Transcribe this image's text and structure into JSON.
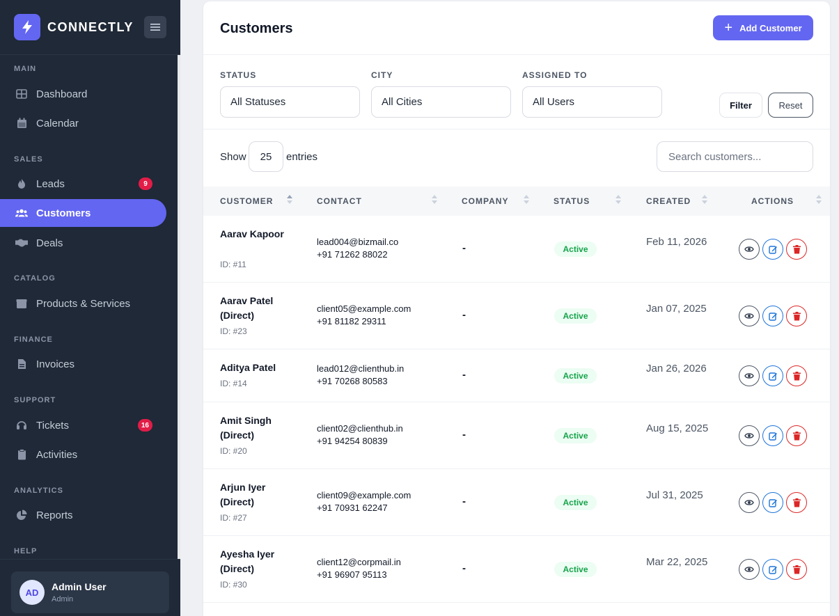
{
  "app": {
    "name": "CONNECTLY"
  },
  "sidebar": {
    "sections": {
      "main": "MAIN",
      "sales": "SALES",
      "catalog": "CATALOG",
      "finance": "FINANCE",
      "support": "SUPPORT",
      "analytics": "ANALYTICS",
      "help": "HELP"
    },
    "items": {
      "dashboard": "Dashboard",
      "calendar": "Calendar",
      "leads": "Leads",
      "leads_badge": "9",
      "customers": "Customers",
      "deals": "Deals",
      "products": "Products & Services",
      "invoices": "Invoices",
      "tickets": "Tickets",
      "tickets_badge": "16",
      "activities": "Activities",
      "reports": "Reports"
    },
    "user": {
      "initials": "AD",
      "name": "Admin User",
      "role": "Admin"
    }
  },
  "header": {
    "title": "Customers",
    "add_label": "Add Customer"
  },
  "filters": {
    "status_label": "STATUS",
    "status_value": "All Statuses",
    "city_label": "CITY",
    "city_value": "All Cities",
    "assigned_label": "ASSIGNED TO",
    "assigned_value": "All Users",
    "filter_label": "Filter",
    "reset_label": "Reset"
  },
  "toolbar": {
    "show_label": "Show",
    "entries_value": "25",
    "entries_label": "entries",
    "search_placeholder": "Search customers..."
  },
  "table": {
    "headers": {
      "customer": "CUSTOMER",
      "contact": "CONTACT",
      "company": "COMPANY",
      "status": "STATUS",
      "created": "CREATED",
      "actions": "ACTIONS"
    },
    "rows": [
      {
        "name": "Aarav Kapoor",
        "id": "ID: #11",
        "email": "lead004@bizmail.co",
        "phone": "+91 71262 88022",
        "company": "-",
        "status": "Active",
        "created": "Feb 11, 2026"
      },
      {
        "name": "Aarav Patel (Direct)",
        "id": "ID: #23",
        "email": "client05@example.com",
        "phone": "+91 81182 29311",
        "company": "-",
        "status": "Active",
        "created": "Jan 07, 2025"
      },
      {
        "name": "Aditya Patel",
        "id": "ID: #14",
        "email": "lead012@clienthub.in",
        "phone": "+91 70268 80583",
        "company": "-",
        "status": "Active",
        "created": "Jan 26, 2026"
      },
      {
        "name": "Amit Singh (Direct)",
        "id": "ID: #20",
        "email": "client02@clienthub.in",
        "phone": "+91 94254 80839",
        "company": "-",
        "status": "Active",
        "created": "Aug 15, 2025"
      },
      {
        "name": "Arjun Iyer (Direct)",
        "id": "ID: #27",
        "email": "client09@example.com",
        "phone": "+91 70931 62247",
        "company": "-",
        "status": "Active",
        "created": "Jul 31, 2025"
      },
      {
        "name": "Ayesha Iyer (Direct)",
        "id": "ID: #30",
        "email": "client12@corpmail.in",
        "phone": "+91 96907 95113",
        "company": "-",
        "status": "Active",
        "created": "Mar 22, 2025"
      }
    ]
  }
}
